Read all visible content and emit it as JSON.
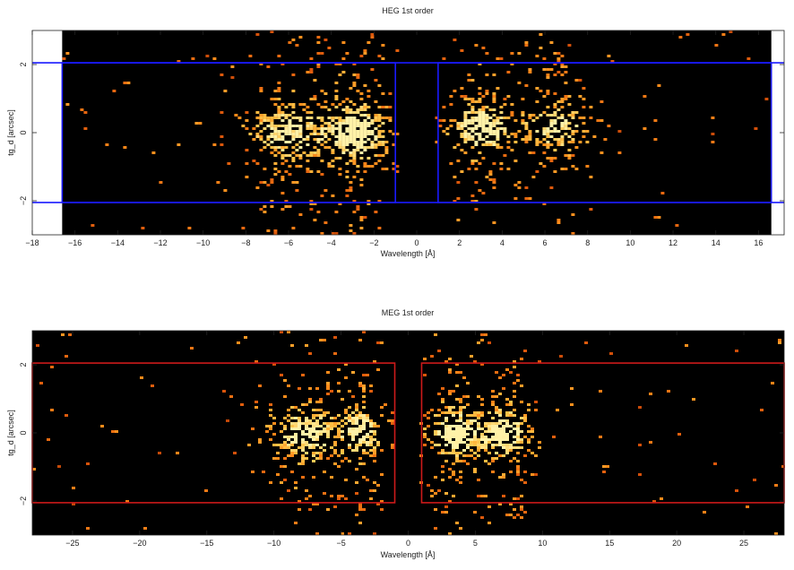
{
  "chart_data": [
    {
      "type": "heatmap",
      "title": "HEG 1st order",
      "xlabel": "Wavelength [Å]",
      "ylabel": "tg_d [arcsec]",
      "xlim": [
        -18,
        17.2
      ],
      "ylim": [
        -3.0,
        3.0
      ],
      "data_xlim": [
        -16.6,
        16.6
      ],
      "xticks": [
        -18,
        -16,
        -14,
        -12,
        -10,
        -8,
        -6,
        -4,
        -2,
        0,
        2,
        4,
        6,
        8,
        10,
        12,
        14,
        16
      ],
      "xtick_labels": [
        "−18",
        "−16",
        "−14",
        "−12",
        "−10",
        "−8",
        "−6",
        "−4",
        "−2",
        "0",
        "2",
        "4",
        "6",
        "8",
        "10",
        "12",
        "14",
        "16"
      ],
      "yticks": [
        -2,
        0,
        2
      ],
      "ytick_labels": [
        "−2",
        "0",
        "2"
      ],
      "background_color": "#000000",
      "regions": [
        {
          "x": [
            -16.6,
            -1.0
          ],
          "y": [
            -2.05,
            2.05
          ]
        },
        {
          "x": [
            1.0,
            16.6
          ],
          "y": [
            -2.05,
            2.05
          ]
        }
      ],
      "region_color": "#1a1aff",
      "line_spans": [
        {
          "y": 2.05,
          "x": [
            -18,
            17.2
          ]
        },
        {
          "y": -2.05,
          "x": [
            -18,
            17.2
          ]
        }
      ],
      "clusters": [
        {
          "x": -6.0,
          "sx": 1.2,
          "y": 0.0,
          "sy": 0.45,
          "weight": 0.9
        },
        {
          "x": -2.8,
          "sx": 0.9,
          "y": 0.0,
          "sy": 0.45,
          "weight": 1.3
        },
        {
          "x": 3.0,
          "sx": 0.9,
          "y": 0.1,
          "sy": 0.4,
          "weight": 1.2
        },
        {
          "x": 6.5,
          "sx": 1.0,
          "y": 0.15,
          "sy": 0.4,
          "weight": 0.9
        }
      ],
      "colorscale": [
        "#000000",
        "#6a1f00",
        "#d8520a",
        "#ff8c1a",
        "#ffc247",
        "#fff2a8"
      ]
    },
    {
      "type": "heatmap",
      "title": "MEG 1st order",
      "xlabel": "Wavelength [Å]",
      "ylabel": "tg_d [arcsec]",
      "xlim": [
        -28,
        28
      ],
      "ylim": [
        -3.0,
        3.0
      ],
      "data_xlim": [
        -28,
        28
      ],
      "xticks": [
        -25,
        -20,
        -15,
        -10,
        -5,
        0,
        5,
        10,
        15,
        20,
        25
      ],
      "xtick_labels": [
        "−25",
        "−20",
        "−15",
        "−10",
        "−5",
        "0",
        "5",
        "10",
        "15",
        "20",
        "25"
      ],
      "yticks": [
        -2,
        0,
        2
      ],
      "ytick_labels": [
        "−2",
        "0",
        "2"
      ],
      "background_color": "#000000",
      "regions": [
        {
          "x": [
            -28,
            -1.0
          ],
          "y": [
            -2.05,
            2.05
          ]
        },
        {
          "x": [
            1.0,
            28
          ],
          "y": [
            -2.05,
            2.05
          ]
        }
      ],
      "region_color": "#cc1a1a",
      "line_spans": [],
      "clusters": [
        {
          "x": -7.5,
          "sx": 1.6,
          "y": 0.0,
          "sy": 0.45,
          "weight": 1.0
        },
        {
          "x": -3.5,
          "sx": 1.0,
          "y": 0.0,
          "sy": 0.45,
          "weight": 0.9
        },
        {
          "x": 3.5,
          "sx": 1.3,
          "y": 0.0,
          "sy": 0.4,
          "weight": 1.2
        },
        {
          "x": 7.2,
          "sx": 1.2,
          "y": 0.0,
          "sy": 0.4,
          "weight": 1.1
        }
      ],
      "colorscale": [
        "#000000",
        "#6a1f00",
        "#d8520a",
        "#ff8c1a",
        "#ffc247",
        "#fff2a8"
      ]
    }
  ]
}
